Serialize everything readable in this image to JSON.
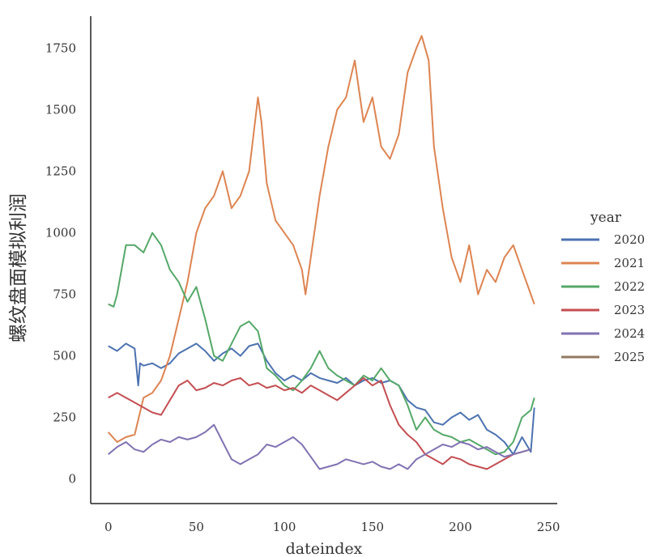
{
  "chart_data": {
    "type": "line",
    "xlabel": "dateindex",
    "ylabel": "螺纹盘面模拟利润",
    "xlim": [
      -10,
      255
    ],
    "ylim": [
      -100,
      1880
    ],
    "xticks": [
      0,
      50,
      100,
      150,
      200,
      250
    ],
    "yticks": [
      0,
      250,
      500,
      750,
      1000,
      1250,
      1500,
      1750
    ],
    "grid": false,
    "legend": {
      "title": "year",
      "placement": "right"
    },
    "series": [
      {
        "name": "2020",
        "color": "#4C72B0",
        "x": [
          0,
          5,
          10,
          15,
          17,
          18,
          20,
          25,
          30,
          35,
          40,
          45,
          50,
          55,
          60,
          65,
          70,
          75,
          80,
          85,
          90,
          95,
          100,
          105,
          110,
          115,
          120,
          125,
          130,
          135,
          140,
          145,
          150,
          155,
          160,
          165,
          170,
          175,
          180,
          185,
          190,
          195,
          200,
          205,
          210,
          215,
          220,
          225,
          230,
          235,
          240,
          242
        ],
        "y": [
          540,
          520,
          550,
          530,
          380,
          470,
          460,
          470,
          450,
          470,
          510,
          530,
          550,
          520,
          480,
          510,
          530,
          500,
          540,
          550,
          480,
          430,
          400,
          420,
          400,
          430,
          410,
          400,
          390,
          410,
          380,
          400,
          410,
          390,
          400,
          380,
          320,
          290,
          280,
          230,
          220,
          250,
          270,
          240,
          260,
          200,
          180,
          150,
          100,
          170,
          110,
          290
        ]
      },
      {
        "name": "2021",
        "color": "#DD8452",
        "x": [
          0,
          5,
          10,
          15,
          20,
          25,
          30,
          35,
          40,
          45,
          50,
          55,
          60,
          65,
          70,
          75,
          80,
          85,
          87,
          90,
          95,
          100,
          105,
          110,
          112,
          115,
          120,
          125,
          130,
          135,
          140,
          145,
          150,
          155,
          160,
          165,
          170,
          175,
          178,
          182,
          185,
          190,
          195,
          200,
          205,
          210,
          215,
          220,
          225,
          230,
          235,
          240,
          242
        ],
        "y": [
          190,
          150,
          170,
          180,
          330,
          350,
          400,
          500,
          650,
          800,
          1000,
          1100,
          1150,
          1250,
          1100,
          1150,
          1250,
          1550,
          1450,
          1200,
          1050,
          1000,
          950,
          850,
          750,
          900,
          1150,
          1350,
          1500,
          1550,
          1700,
          1450,
          1550,
          1350,
          1300,
          1400,
          1650,
          1750,
          1800,
          1700,
          1350,
          1100,
          900,
          800,
          950,
          750,
          850,
          800,
          900,
          950,
          850,
          750,
          710
        ]
      },
      {
        "name": "2022",
        "color": "#55A868",
        "x": [
          0,
          3,
          5,
          10,
          15,
          20,
          25,
          30,
          35,
          40,
          45,
          50,
          55,
          60,
          65,
          70,
          75,
          80,
          85,
          90,
          95,
          100,
          105,
          110,
          115,
          120,
          125,
          130,
          135,
          140,
          145,
          150,
          155,
          160,
          165,
          170,
          175,
          180,
          185,
          190,
          195,
          200,
          205,
          210,
          215,
          220,
          225,
          230,
          235,
          240,
          242
        ],
        "y": [
          710,
          700,
          750,
          950,
          950,
          920,
          1000,
          950,
          850,
          800,
          720,
          780,
          650,
          500,
          480,
          550,
          620,
          640,
          600,
          450,
          420,
          380,
          360,
          400,
          450,
          520,
          450,
          420,
          400,
          380,
          420,
          400,
          450,
          400,
          380,
          300,
          200,
          250,
          200,
          180,
          170,
          150,
          160,
          140,
          120,
          100,
          110,
          150,
          250,
          280,
          330
        ]
      },
      {
        "name": "2023",
        "color": "#C44E52",
        "x": [
          0,
          5,
          10,
          15,
          20,
          25,
          30,
          35,
          40,
          45,
          50,
          55,
          60,
          65,
          70,
          75,
          80,
          85,
          90,
          95,
          100,
          105,
          110,
          115,
          120,
          125,
          130,
          135,
          140,
          145,
          150,
          155,
          160,
          165,
          170,
          175,
          180,
          185,
          190,
          195,
          200,
          205,
          210,
          215,
          220,
          225,
          230,
          235,
          240
        ],
        "y": [
          330,
          350,
          330,
          310,
          290,
          270,
          260,
          320,
          380,
          400,
          360,
          370,
          390,
          380,
          400,
          410,
          380,
          390,
          370,
          380,
          360,
          370,
          350,
          380,
          360,
          340,
          320,
          350,
          380,
          410,
          380,
          400,
          300,
          220,
          180,
          150,
          100,
          80,
          60,
          90,
          80,
          60,
          50,
          40,
          60,
          80,
          100,
          110,
          120
        ]
      },
      {
        "name": "2024",
        "color": "#8172B2",
        "x": [
          0,
          5,
          10,
          15,
          20,
          25,
          30,
          35,
          40,
          45,
          50,
          55,
          60,
          65,
          70,
          75,
          80,
          85,
          90,
          95,
          100,
          105,
          110,
          115,
          120,
          125,
          130,
          135,
          140,
          145,
          150,
          155,
          160,
          165,
          170,
          175,
          180,
          185,
          190,
          195,
          200,
          205,
          210,
          215,
          220,
          225,
          230,
          235,
          240
        ],
        "y": [
          100,
          130,
          150,
          120,
          110,
          140,
          160,
          150,
          170,
          160,
          170,
          190,
          220,
          150,
          80,
          60,
          80,
          100,
          140,
          130,
          150,
          170,
          140,
          90,
          40,
          50,
          60,
          80,
          70,
          60,
          70,
          50,
          40,
          60,
          40,
          80,
          100,
          120,
          140,
          130,
          150,
          140,
          120,
          130,
          110,
          90,
          100,
          110,
          120
        ]
      },
      {
        "name": "2025",
        "color": "#937860",
        "x": [],
        "y": []
      }
    ]
  }
}
